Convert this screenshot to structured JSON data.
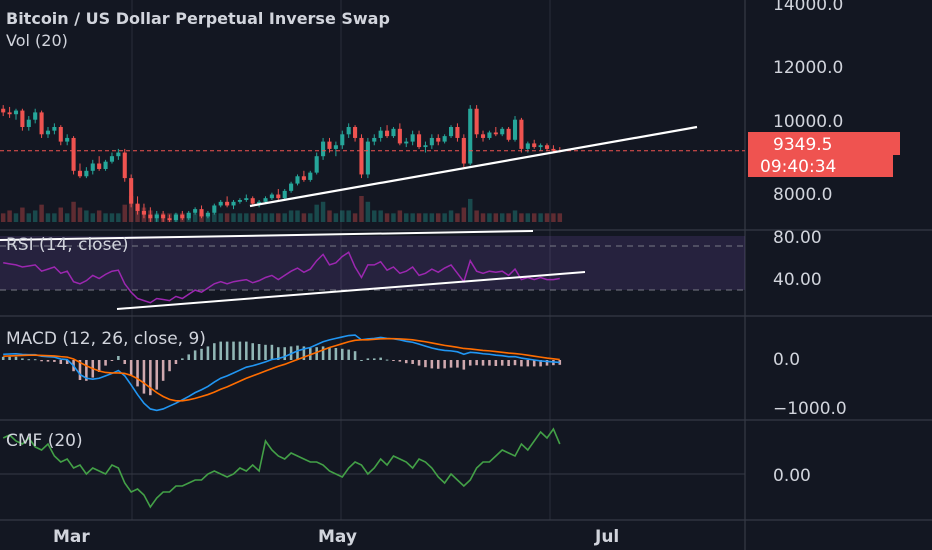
{
  "header": {
    "title": "Bitcoin / US Dollar Perpetual Inverse Swap",
    "vol_label": "Vol (20)"
  },
  "price_axis": {
    "ticks": [
      "14000.0",
      "12000.0",
      "10000.0",
      "8000.0"
    ],
    "last_price": "9349.5",
    "countdown": "09:40:34"
  },
  "rsi": {
    "label": "RSI (14, close)",
    "ticks": [
      "80.00",
      "40.00"
    ]
  },
  "macd": {
    "label": "MACD (12, 26, close, 9)",
    "ticks": [
      "0.0",
      "−1000.0"
    ]
  },
  "cmf": {
    "label": "CMF (20)",
    "ticks": [
      "0.00"
    ]
  },
  "time_axis": {
    "labels": [
      "Mar",
      "May",
      "Jul"
    ]
  },
  "colors": {
    "background": "#131722",
    "up": "#26a69a",
    "down": "#ef5350",
    "rsi_line": "#9c27b0",
    "rsi_band": "#7e57c2",
    "macd_line": "#2196f3",
    "signal_line": "#ff6d00",
    "cmf_line": "#43a047",
    "trendline": "#ffffff"
  },
  "chart_data": {
    "type": "candlestick",
    "symbol": "Bitcoin / US Dollar Perpetual Inverse Swap",
    "price_range": [
      7300,
      14400
    ],
    "last_price": 9349.5,
    "price_ticks": [
      14000,
      12000,
      10000,
      8000
    ],
    "candles": [
      [
        10500,
        10600,
        10300,
        10400
      ],
      [
        10400,
        10550,
        10250,
        10350
      ],
      [
        10350,
        10500,
        10200,
        10450
      ],
      [
        10450,
        10500,
        9900,
        10000
      ],
      [
        10000,
        10300,
        9900,
        10200
      ],
      [
        10200,
        10500,
        10100,
        10400
      ],
      [
        10400,
        10450,
        9700,
        9800
      ],
      [
        9800,
        10000,
        9700,
        9900
      ],
      [
        9900,
        10100,
        9800,
        10000
      ],
      [
        10000,
        10050,
        9500,
        9600
      ],
      [
        9600,
        9800,
        9500,
        9700
      ],
      [
        9700,
        9750,
        8700,
        8800
      ],
      [
        8800,
        9000,
        8600,
        8650
      ],
      [
        8650,
        8900,
        8600,
        8800
      ],
      [
        8800,
        9100,
        8700,
        9000
      ],
      [
        9000,
        9200,
        8800,
        8850
      ],
      [
        8850,
        9100,
        8800,
        9050
      ],
      [
        9050,
        9300,
        9000,
        9200
      ],
      [
        9200,
        9400,
        9100,
        9300
      ],
      [
        9300,
        9400,
        8500,
        8600
      ],
      [
        8600,
        8700,
        7800,
        7900
      ],
      [
        7900,
        8100,
        7600,
        7700
      ],
      [
        7700,
        7900,
        7500,
        7600
      ],
      [
        7600,
        7800,
        7400,
        7500
      ],
      [
        7500,
        7700,
        7400,
        7600
      ],
      [
        7600,
        7700,
        7400,
        7500
      ],
      [
        7500,
        7600,
        7400,
        7450
      ],
      [
        7450,
        7650,
        7400,
        7600
      ],
      [
        7600,
        7700,
        7450,
        7500
      ],
      [
        7500,
        7700,
        7450,
        7650
      ],
      [
        7650,
        7800,
        7600,
        7750
      ],
      [
        7750,
        7850,
        7500,
        7550
      ],
      [
        7550,
        7700,
        7500,
        7650
      ],
      [
        7650,
        7900,
        7600,
        7850
      ],
      [
        7850,
        8000,
        7800,
        7950
      ],
      [
        7950,
        8100,
        7800,
        7850
      ],
      [
        7850,
        8000,
        7750,
        7950
      ],
      [
        7950,
        8050,
        7900,
        8000
      ],
      [
        8000,
        8150,
        7950,
        8050
      ],
      [
        8050,
        8100,
        7850,
        7900
      ],
      [
        7900,
        8000,
        7800,
        7950
      ],
      [
        7950,
        8100,
        7900,
        8050
      ],
      [
        8050,
        8200,
        8000,
        8150
      ],
      [
        8150,
        8300,
        8000,
        8050
      ],
      [
        8050,
        8300,
        8000,
        8250
      ],
      [
        8250,
        8500,
        8200,
        8450
      ],
      [
        8450,
        8700,
        8400,
        8650
      ],
      [
        8650,
        8800,
        8500,
        8550
      ],
      [
        8550,
        8800,
        8500,
        8750
      ],
      [
        8750,
        9300,
        8700,
        9200
      ],
      [
        9200,
        9700,
        9100,
        9600
      ],
      [
        9600,
        9700,
        9300,
        9400
      ],
      [
        9400,
        9600,
        9200,
        9500
      ],
      [
        9500,
        9900,
        9400,
        9800
      ],
      [
        9800,
        10100,
        9700,
        10000
      ],
      [
        10000,
        10050,
        9600,
        9700
      ],
      [
        9700,
        9800,
        8600,
        8700
      ],
      [
        8700,
        9700,
        8600,
        9600
      ],
      [
        9600,
        9800,
        9500,
        9700
      ],
      [
        9700,
        10000,
        9600,
        9900
      ],
      [
        9900,
        10050,
        9700,
        9750
      ],
      [
        9750,
        10000,
        9700,
        9950
      ],
      [
        9950,
        10100,
        9500,
        9550
      ],
      [
        9550,
        9700,
        9450,
        9600
      ],
      [
        9600,
        9900,
        9500,
        9800
      ],
      [
        9800,
        9900,
        9400,
        9450
      ],
      [
        9450,
        9600,
        9300,
        9500
      ],
      [
        9500,
        9800,
        9400,
        9700
      ],
      [
        9700,
        9800,
        9500,
        9600
      ],
      [
        9600,
        9800,
        9550,
        9750
      ],
      [
        9750,
        10050,
        9700,
        10000
      ],
      [
        10000,
        10100,
        9600,
        9700
      ],
      [
        9700,
        9800,
        8900,
        9000
      ],
      [
        9000,
        10600,
        8950,
        10500
      ],
      [
        10500,
        10600,
        9700,
        9800
      ],
      [
        9800,
        9900,
        9600,
        9700
      ],
      [
        9700,
        9900,
        9650,
        9850
      ],
      [
        9850,
        10000,
        9750,
        9800
      ],
      [
        9800,
        10000,
        9750,
        9950
      ],
      [
        9950,
        10000,
        9600,
        9650
      ],
      [
        9650,
        10300,
        9600,
        10200
      ],
      [
        10200,
        10250,
        9300,
        9400
      ],
      [
        9400,
        9600,
        9300,
        9550
      ],
      [
        9550,
        9650,
        9400,
        9450
      ],
      [
        9450,
        9550,
        9350,
        9500
      ],
      [
        9500,
        9550,
        9350,
        9400
      ],
      [
        9400,
        9500,
        9300,
        9350
      ],
      [
        9350,
        9450,
        9300,
        9349.5
      ]
    ],
    "volume": [
      3,
      4,
      3,
      5,
      3,
      4,
      6,
      3,
      3,
      5,
      3,
      7,
      5,
      4,
      3,
      4,
      3,
      3,
      3,
      6,
      9,
      6,
      5,
      4,
      3,
      3,
      3,
      3,
      3,
      3,
      3,
      3,
      3,
      3,
      3,
      3,
      3,
      3,
      3,
      3,
      3,
      3,
      3,
      3,
      3,
      4,
      4,
      3,
      3,
      6,
      7,
      4,
      3,
      4,
      4,
      3,
      9,
      7,
      4,
      4,
      3,
      3,
      4,
      3,
      3,
      3,
      3,
      3,
      3,
      3,
      4,
      3,
      5,
      8,
      4,
      3,
      3,
      3,
      3,
      3,
      4,
      3,
      3,
      3,
      3,
      3,
      3,
      3
    ],
    "rsi": [
      64,
      63,
      62,
      60,
      61,
      62,
      56,
      58,
      60,
      54,
      56,
      46,
      44,
      47,
      52,
      49,
      53,
      56,
      57,
      44,
      36,
      30,
      28,
      26,
      30,
      29,
      28,
      32,
      30,
      34,
      38,
      36,
      40,
      44,
      46,
      44,
      46,
      47,
      48,
      45,
      47,
      50,
      52,
      48,
      52,
      56,
      59,
      55,
      58,
      66,
      72,
      62,
      64,
      70,
      74,
      60,
      50,
      62,
      62,
      65,
      57,
      60,
      54,
      56,
      60,
      52,
      54,
      58,
      55,
      59,
      62,
      54,
      46,
      66,
      56,
      54,
      56,
      55,
      56,
      52,
      58,
      48,
      50,
      48,
      50,
      48,
      48,
      49
    ],
    "macd": [
      120,
      125,
      130,
      115,
      110,
      110,
      80,
      70,
      60,
      20,
      10,
      -120,
      -300,
      -380,
      -400,
      -380,
      -330,
      -280,
      -220,
      -330,
      -520,
      -720,
      -900,
      -1020,
      -1050,
      -1020,
      -960,
      -900,
      -830,
      -760,
      -680,
      -620,
      -550,
      -460,
      -380,
      -330,
      -270,
      -210,
      -150,
      -120,
      -80,
      -40,
      10,
      30,
      70,
      130,
      190,
      230,
      260,
      320,
      380,
      420,
      450,
      480,
      510,
      520,
      420,
      440,
      450,
      470,
      450,
      440,
      420,
      390,
      370,
      330,
      290,
      250,
      220,
      200,
      190,
      170,
      120,
      160,
      150,
      130,
      120,
      100,
      90,
      70,
      70,
      40,
      20,
      0,
      -20,
      -30,
      -40,
      -50
    ],
    "signal": [
      80,
      85,
      90,
      95,
      100,
      100,
      96,
      90,
      84,
      70,
      60,
      20,
      -50,
      -120,
      -180,
      -230,
      -260,
      -270,
      -270,
      -280,
      -320,
      -390,
      -480,
      -580,
      -680,
      -760,
      -820,
      -850,
      -850,
      -830,
      -800,
      -760,
      -720,
      -670,
      -610,
      -560,
      -500,
      -440,
      -380,
      -330,
      -280,
      -230,
      -180,
      -130,
      -90,
      -40,
      10,
      60,
      110,
      160,
      210,
      260,
      300,
      340,
      380,
      410,
      420,
      420,
      430,
      440,
      445,
      445,
      440,
      430,
      420,
      400,
      380,
      355,
      330,
      305,
      285,
      265,
      240,
      230,
      215,
      200,
      190,
      175,
      160,
      145,
      135,
      120,
      100,
      80,
      60,
      40,
      25,
      10
    ],
    "cmf": [
      0.12,
      0.13,
      0.11,
      0.1,
      0.12,
      0.09,
      0.08,
      0.1,
      0.06,
      0.04,
      0.05,
      0.02,
      0.03,
      0.0,
      0.02,
      0.01,
      0.0,
      0.03,
      0.02,
      -0.03,
      -0.06,
      -0.05,
      -0.07,
      -0.11,
      -0.08,
      -0.06,
      -0.06,
      -0.04,
      -0.04,
      -0.03,
      -0.02,
      -0.02,
      0.0,
      0.01,
      0.0,
      -0.01,
      0.0,
      0.02,
      0.01,
      0.03,
      0.01,
      0.11,
      0.08,
      0.06,
      0.05,
      0.07,
      0.06,
      0.05,
      0.04,
      0.04,
      0.03,
      0.01,
      0.0,
      -0.01,
      0.02,
      0.04,
      0.03,
      0.0,
      0.02,
      0.05,
      0.03,
      0.06,
      0.05,
      0.04,
      0.02,
      0.05,
      0.04,
      0.02,
      -0.01,
      -0.03,
      0.0,
      -0.02,
      -0.04,
      -0.02,
      0.02,
      0.04,
      0.04,
      0.06,
      0.08,
      0.07,
      0.06,
      0.1,
      0.08,
      0.11,
      0.14,
      0.12,
      0.15,
      0.1
    ],
    "rsi_band": [
      40,
      80
    ],
    "cmf_range": [
      -0.1,
      0.15
    ],
    "macd_range": [
      -1100,
      700
    ]
  }
}
